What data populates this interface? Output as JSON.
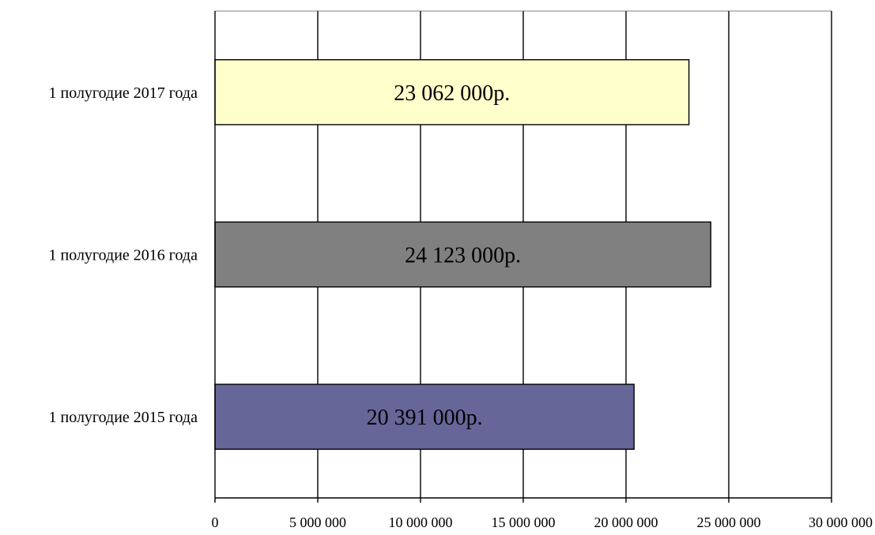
{
  "chart_data": {
    "type": "bar",
    "orientation": "horizontal",
    "categories": [
      "1 полугодие 2017 года",
      "1 полугодие 2016 года",
      "1 полугодие 2015 года"
    ],
    "values": [
      23062000,
      24123000,
      20391000
    ],
    "data_labels": [
      "23 062 000р.",
      "24 123 000р.",
      "20 391 000р."
    ],
    "colors": [
      "#FFFFCC",
      "#808080",
      "#666699"
    ],
    "xlim": [
      0,
      30000000
    ],
    "x_ticks": [
      0,
      5000000,
      10000000,
      15000000,
      20000000,
      25000000,
      30000000
    ],
    "x_tick_labels": [
      "0",
      "5 000 000",
      "10 000 000",
      "15 000 000",
      "20 000 000",
      "25 000 000",
      "30 000 000"
    ],
    "grid": true,
    "title": "",
    "xlabel": "",
    "ylabel": ""
  }
}
